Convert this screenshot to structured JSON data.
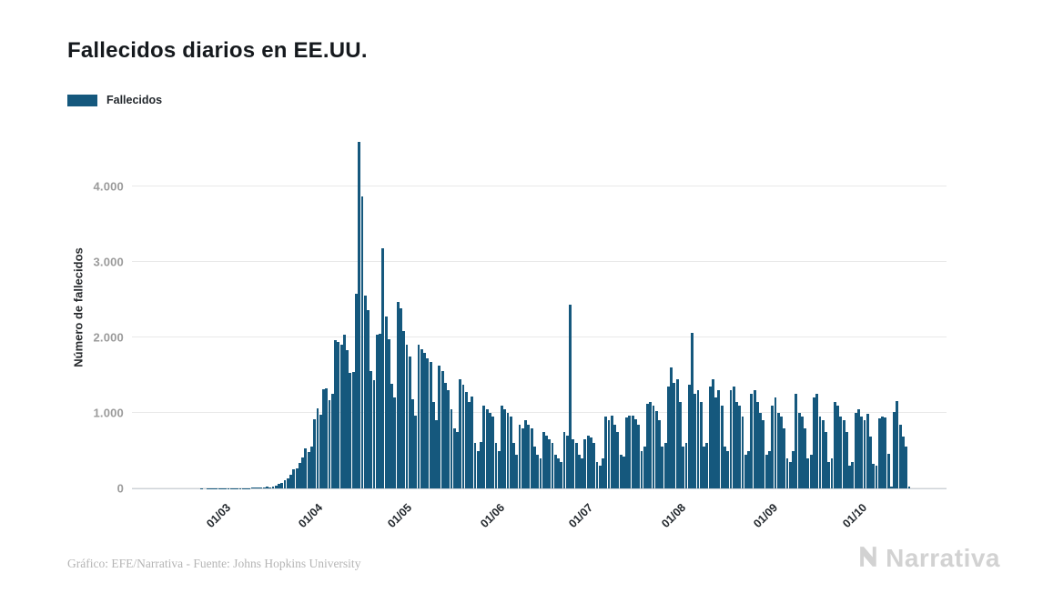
{
  "title": "Fallecidos diarios en EE.UU.",
  "legend": {
    "label": "Fallecidos",
    "swatch_color": "#15587d"
  },
  "y_axis": {
    "title": "Número de fallecidos"
  },
  "footer": {
    "credit": "Gráfico: EFE/Narrativa - Fuente: Johns Hopkins University"
  },
  "brand": {
    "logo_text": "Narrativa",
    "logo_icon": "narrativa-n-chevron"
  },
  "colors": {
    "bar": "#15587d",
    "grid": "#e9e9e9",
    "axis_line": "#ccd2d8",
    "y_tick_label": "#9b9b9b",
    "x_tick_label": "#23282d",
    "credit_text": "#b5b5b5",
    "logo": "#d2d2d2"
  },
  "chart_data": {
    "type": "bar",
    "title": "Fallecidos diarios en EE.UU.",
    "series_name": "Fallecidos",
    "xlabel": "",
    "ylabel": "Número de fallecidos",
    "ylim": [
      0,
      4750
    ],
    "grid": true,
    "legend_position": "top-left",
    "y_ticks": [
      {
        "label": "0",
        "value": 0
      },
      {
        "label": "1.000",
        "value": 1000
      },
      {
        "label": "2.000",
        "value": 2000
      },
      {
        "label": "3.000",
        "value": 3000
      },
      {
        "label": "4.000",
        "value": 4000
      }
    ],
    "x_ticks": [
      {
        "label": "01/03",
        "slot": 31
      },
      {
        "label": "01/04",
        "slot": 62
      },
      {
        "label": "01/05",
        "slot": 92
      },
      {
        "label": "01/06",
        "slot": 123
      },
      {
        "label": "01/07",
        "slot": 153
      },
      {
        "label": "01/08",
        "slot": 184
      },
      {
        "label": "01/09",
        "slot": 215
      },
      {
        "label": "01/10",
        "slot": 245
      }
    ],
    "total_slots": 274,
    "x_unit": "day (late Jan – late Oct 2020)",
    "values": [
      0,
      0,
      0,
      0,
      0,
      0,
      0,
      0,
      0,
      0,
      0,
      0,
      0,
      0,
      0,
      0,
      0,
      0,
      0,
      0,
      0,
      0,
      0,
      1,
      0,
      1,
      1,
      2,
      1,
      3,
      1,
      1,
      4,
      3,
      2,
      4,
      3,
      4,
      5,
      4,
      7,
      8,
      10,
      12,
      16,
      22,
      18,
      27,
      42,
      56,
      70,
      112,
      136,
      182,
      250,
      270,
      332,
      405,
      530,
      480,
      560,
      912,
      1062,
      975,
      1320,
      1330,
      1170,
      1255,
      1970,
      1940,
      1910,
      2035,
      1830,
      1530,
      1540,
      2580,
      4591,
      3870,
      2560,
      2360,
      1560,
      1433,
      2040,
      2052,
      3179,
      2280,
      1975,
      1390,
      1200,
      2470,
      2390,
      2080,
      1900,
      1750,
      1180,
      960,
      1900,
      1850,
      1800,
      1720,
      1680,
      1150,
      900,
      1630,
      1550,
      1400,
      1300,
      1050,
      800,
      750,
      1450,
      1380,
      1280,
      1150,
      1220,
      600,
      500,
      620,
      1100,
      1050,
      1000,
      950,
      600,
      500,
      1100,
      1050,
      1000,
      950,
      600,
      450,
      850,
      800,
      900,
      850,
      800,
      550,
      450,
      400,
      750,
      700,
      650,
      600,
      450,
      400,
      350,
      750,
      700,
      2437,
      650,
      600,
      450,
      400,
      650,
      700,
      680,
      600,
      350,
      300,
      400,
      950,
      900,
      960,
      850,
      750,
      450,
      420,
      940,
      970,
      960,
      920,
      850,
      500,
      550,
      1120,
      1150,
      1100,
      1020,
      900,
      550,
      600,
      1350,
      1600,
      1400,
      1450,
      1150,
      550,
      600,
      1380,
      2060,
      1250,
      1300,
      1150,
      550,
      600,
      1350,
      1450,
      1200,
      1300,
      1100,
      550,
      500,
      1300,
      1350,
      1150,
      1100,
      950,
      450,
      500,
      1250,
      1300,
      1150,
      1000,
      900,
      450,
      500,
      1100,
      1200,
      1000,
      950,
      800,
      400,
      350,
      500,
      1250,
      1000,
      950,
      800,
      400,
      450,
      1200,
      1250,
      950,
      900,
      750,
      350,
      400,
      1150,
      1100,
      950,
      900,
      750,
      300,
      350,
      1000,
      1050,
      950,
      910,
      990,
      690,
      330,
      300,
      930,
      955,
      940,
      460,
      20,
      1010,
      1160,
      850,
      690,
      550,
      30,
      0,
      0,
      0,
      0,
      0,
      0,
      0,
      0,
      0,
      0,
      0,
      0
    ]
  }
}
